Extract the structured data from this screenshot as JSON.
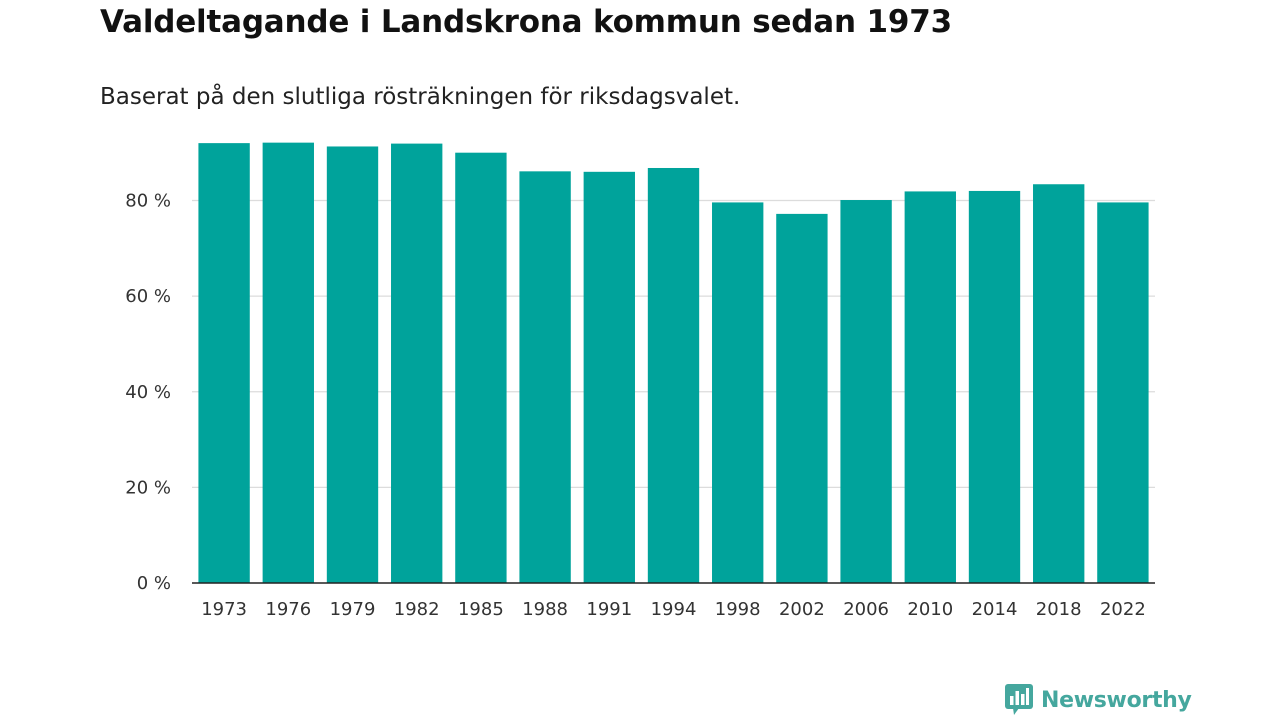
{
  "chart_data": {
    "type": "bar",
    "title": "Valdeltagande i Landskrona kommun sedan 1973",
    "subtitle": "Baserat på den slutliga rösträkningen för riksdagsvalet.",
    "categories": [
      "1973",
      "1976",
      "1979",
      "1982",
      "1985",
      "1988",
      "1991",
      "1994",
      "1998",
      "2002",
      "2006",
      "2010",
      "2014",
      "2018",
      "2022"
    ],
    "values": [
      92.0,
      92.1,
      91.3,
      91.9,
      90.0,
      86.1,
      86.0,
      86.8,
      79.6,
      77.2,
      80.1,
      81.9,
      82.0,
      83.4,
      79.6
    ],
    "xlabel": "",
    "ylabel": "",
    "ylim": [
      0,
      100
    ],
    "yticks": [
      0,
      20,
      40,
      60,
      80
    ],
    "ytick_labels": [
      "0 %",
      "20 %",
      "40 %",
      "60 %",
      "80 %"
    ],
    "grid": true,
    "bar_color": "#00a39b"
  },
  "brand": {
    "name": "Newsworthy",
    "logo_icon": "bar-chart-speech-bubble-icon",
    "color": "#45a79e"
  }
}
